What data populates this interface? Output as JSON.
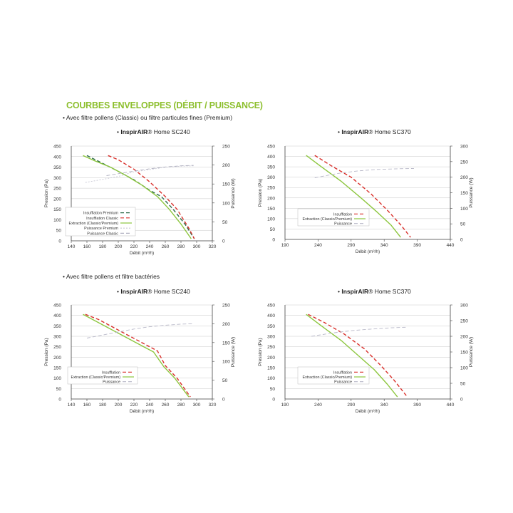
{
  "header": {
    "title": "COURBES ENVELOPPES (DÉBIT / PUISSANCE)",
    "section1": "• Avec filtre pollens (Classic) ou filtre particules fines (Premium)",
    "section2": "• Avec filtre pollens et filtre bactéries"
  },
  "colors": {
    "insufflation": "#d9302b",
    "extraction": "#8dc63f",
    "premium_dark": "#2e6b4a",
    "puissance": "#b8b8c8",
    "axis": "#444444",
    "grid": "#c8c8c8",
    "title_green": "#8dbf2e"
  },
  "chart_data": [
    {
      "type": "line",
      "title_prefix": "• ",
      "title_brand": "InspirAIR",
      "title_suffix": "® Home SC240",
      "xlabel": "Débit (m³/h)",
      "ylabel": "Pression (Pa)",
      "y2label": "Puissance (W)",
      "xlim": [
        140,
        320
      ],
      "ylim": [
        0,
        450
      ],
      "y2lim": [
        0,
        250
      ],
      "xticks": [
        "140",
        "160",
        "180",
        "200",
        "220",
        "240",
        "260",
        "280",
        "300",
        "320"
      ],
      "yticks": [
        "0",
        "50",
        "100",
        "150",
        "200",
        "250",
        "300",
        "350",
        "400",
        "450"
      ],
      "y2ticks": [
        "0",
        "50",
        "100",
        "150",
        "200",
        "250"
      ],
      "legend_position": "bottom-left",
      "series": [
        {
          "name": "Insufflation Premium",
          "axis": "left",
          "style": "dash",
          "color": "#2e6b4a",
          "x": [
            160,
            180,
            200,
            220,
            240,
            255,
            270,
            285,
            297
          ],
          "y": [
            405,
            368,
            330,
            290,
            240,
            210,
            150,
            80,
            10
          ]
        },
        {
          "name": "Insufflation Classic",
          "axis": "left",
          "style": "dash",
          "color": "#d9302b",
          "x": [
            187,
            200,
            220,
            240,
            260,
            275,
            290,
            297
          ],
          "y": [
            405,
            385,
            340,
            280,
            210,
            150,
            60,
            10
          ]
        },
        {
          "name": "Extraction (Classic/Premium)",
          "axis": "left",
          "style": "solid",
          "color": "#8dc63f",
          "x": [
            155,
            170,
            190,
            210,
            230,
            250,
            265,
            280,
            293
          ],
          "y": [
            405,
            380,
            350,
            310,
            265,
            210,
            150,
            80,
            10
          ]
        },
        {
          "name": "Puissance Premium",
          "axis": "right",
          "style": "dot",
          "color": "#c8c8d4",
          "x": [
            158,
            180,
            200,
            220,
            240,
            260,
            280,
            296
          ],
          "y": [
            154,
            162,
            170,
            182,
            188,
            194,
            197,
            198
          ]
        },
        {
          "name": "Puissance Classic",
          "axis": "right",
          "style": "dash",
          "color": "#b0b0c0",
          "x": [
            185,
            200,
            220,
            240,
            260,
            280,
            296
          ],
          "y": [
            172,
            177,
            184,
            190,
            195,
            198,
            199
          ]
        }
      ]
    },
    {
      "type": "line",
      "title_prefix": "• ",
      "title_brand": "InspirAIR",
      "title_suffix": "® Home SC370",
      "xlabel": "Débit (m³/h)",
      "ylabel": "Pression (Pa)",
      "y2label": "Puissance (W)",
      "xlim": [
        190,
        440
      ],
      "ylim": [
        0,
        450
      ],
      "y2lim": [
        0,
        300
      ],
      "xticks": [
        "190",
        "240",
        "290",
        "340",
        "390",
        "440"
      ],
      "yticks": [
        "0",
        "50",
        "100",
        "150",
        "200",
        "250",
        "300",
        "350",
        "400",
        "450"
      ],
      "y2ticks": [
        "0",
        "50",
        "100",
        "150",
        "200",
        "250",
        "300"
      ],
      "legend_position": "bottom-left",
      "series": [
        {
          "name": "Insufflation",
          "axis": "left",
          "style": "dash",
          "color": "#d9302b",
          "x": [
            235,
            260,
            290,
            320,
            345,
            365,
            380
          ],
          "y": [
            405,
            355,
            300,
            220,
            140,
            70,
            10
          ]
        },
        {
          "name": "Extraction (Classic/Premium)",
          "axis": "left",
          "style": "solid",
          "color": "#8dc63f",
          "x": [
            222,
            245,
            275,
            305,
            330,
            350,
            365
          ],
          "y": [
            405,
            350,
            280,
            200,
            130,
            70,
            10
          ]
        },
        {
          "name": "Puissance",
          "axis": "right",
          "style": "dash",
          "color": "#b8b8c8",
          "x": [
            235,
            270,
            300,
            330,
            360,
            385
          ],
          "y": [
            198,
            212,
            220,
            225,
            227,
            228
          ]
        }
      ]
    },
    {
      "type": "line",
      "title_prefix": "• ",
      "title_brand": "InspirAIR",
      "title_suffix": "® Home SC240",
      "xlabel": "Débit (m³/h)",
      "ylabel": "Pression (Pa)",
      "y2label": "Puissance (W)",
      "xlim": [
        140,
        320
      ],
      "ylim": [
        0,
        450
      ],
      "y2lim": [
        0,
        250
      ],
      "xticks": [
        "140",
        "160",
        "180",
        "200",
        "220",
        "240",
        "260",
        "280",
        "300",
        "320"
      ],
      "yticks": [
        "0",
        "50",
        "100",
        "150",
        "200",
        "250",
        "300",
        "350",
        "400",
        "450"
      ],
      "y2ticks": [
        "0",
        "50",
        "100",
        "150",
        "200",
        "250"
      ],
      "legend_position": "bottom-right",
      "series": [
        {
          "name": "Insufflation",
          "axis": "left",
          "style": "dash",
          "color": "#d9302b",
          "x": [
            158,
            175,
            195,
            215,
            235,
            250,
            260,
            275,
            292
          ],
          "y": [
            405,
            380,
            340,
            300,
            260,
            230,
            160,
            100,
            10
          ]
        },
        {
          "name": "Extraction (Classic/Premium)",
          "axis": "left",
          "style": "solid",
          "color": "#8dc63f",
          "x": [
            155,
            170,
            190,
            210,
            230,
            245,
            258,
            272,
            290
          ],
          "y": [
            405,
            375,
            335,
            295,
            255,
            225,
            155,
            100,
            10
          ]
        },
        {
          "name": "Puissance",
          "axis": "right",
          "style": "dash",
          "color": "#b8b8c8",
          "x": [
            160,
            180,
            200,
            220,
            240,
            260,
            280,
            295
          ],
          "y": [
            162,
            170,
            178,
            186,
            192,
            196,
            199,
            200
          ]
        }
      ]
    },
    {
      "type": "line",
      "title_prefix": "• ",
      "title_brand": "InspirAIR",
      "title_suffix": "® Home SC370",
      "xlabel": "Débit (m³/h)",
      "ylabel": "Pression (Pa)",
      "y2label": "Puissance (W)",
      "xlim": [
        190,
        440
      ],
      "ylim": [
        0,
        450
      ],
      "y2lim": [
        0,
        300
      ],
      "xticks": [
        "190",
        "240",
        "290",
        "340",
        "390",
        "440"
      ],
      "yticks": [
        "0",
        "50",
        "100",
        "150",
        "200",
        "250",
        "300",
        "350",
        "400",
        "450"
      ],
      "y2ticks": [
        "0",
        "50",
        "100",
        "150",
        "200",
        "250",
        "300"
      ],
      "legend_position": "bottom-right",
      "series": [
        {
          "name": "Insufflation",
          "axis": "left",
          "style": "dash",
          "color": "#d9302b",
          "x": [
            225,
            250,
            280,
            310,
            335,
            355,
            375
          ],
          "y": [
            405,
            365,
            310,
            240,
            160,
            90,
            10
          ]
        },
        {
          "name": "Extraction (Classic/Premium)",
          "axis": "left",
          "style": "solid",
          "color": "#8dc63f",
          "x": [
            222,
            245,
            275,
            300,
            325,
            345,
            360
          ],
          "y": [
            405,
            350,
            280,
            210,
            140,
            70,
            10
          ]
        },
        {
          "name": "Puissance",
          "axis": "right",
          "style": "dash",
          "color": "#b8b8c8",
          "x": [
            230,
            260,
            290,
            320,
            350,
            375
          ],
          "y": [
            200,
            210,
            218,
            223,
            227,
            229
          ]
        }
      ]
    }
  ]
}
